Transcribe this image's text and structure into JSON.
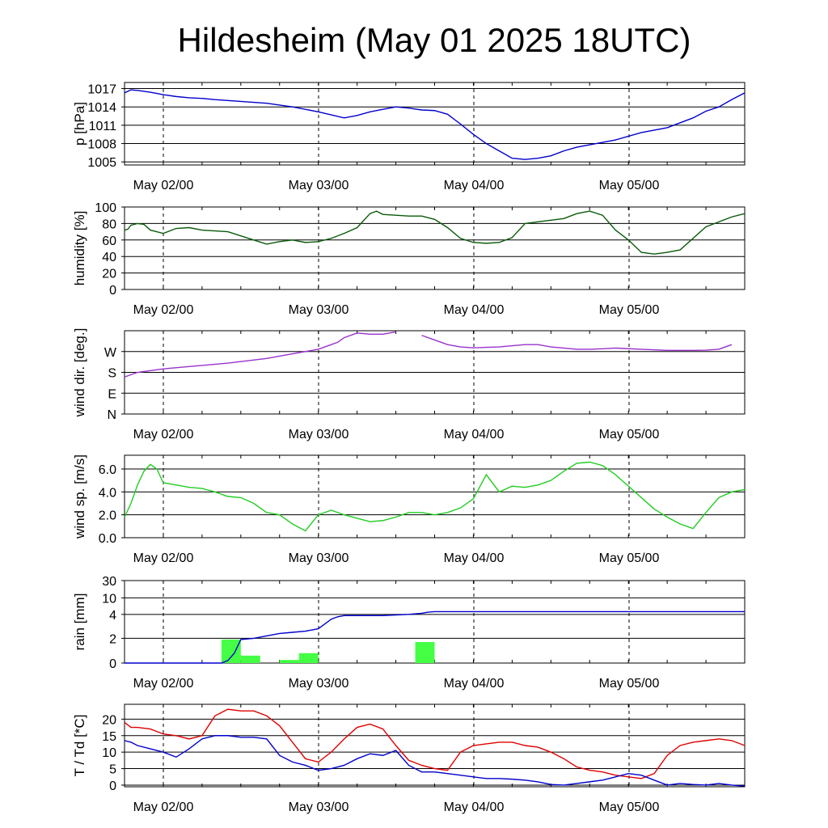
{
  "title": "Hildesheim (May 01 2025 18UTC)",
  "date_labels": [
    "May 02/00",
    "May 03/00",
    "May 04/00",
    "May 05/00"
  ],
  "colors": {
    "pressure": "#0000cc",
    "humidity": "#0a5a0a",
    "wind_dir": "#9932cc",
    "wind_speed": "#22cc22",
    "rain_bar": "#44ff44",
    "rain_line": "#0000cc",
    "temperature": "#e00000",
    "dewpoint": "#0000cc"
  },
  "chart_data": [
    {
      "type": "line",
      "ylabel": "p [hPa]",
      "xlim": [
        0,
        96
      ],
      "ylim": [
        1004.5,
        1018.0
      ],
      "yticks": [
        1005,
        1008,
        1011,
        1014,
        1017
      ],
      "yticklabels": [
        "1005",
        "1008",
        "1011",
        "1014",
        "1017"
      ],
      "series": [
        {
          "color_key": "pressure",
          "x": [
            0,
            1,
            2,
            4,
            6,
            8,
            10,
            12,
            14,
            18,
            22,
            26,
            30,
            34,
            36,
            38,
            40,
            42,
            44,
            46,
            48,
            50,
            52,
            54,
            56,
            58,
            60,
            62,
            64,
            66,
            68,
            70,
            72,
            76,
            80,
            84,
            88,
            90,
            92,
            94,
            96
          ],
          "y": [
            1016.3,
            1016.8,
            1016.7,
            1016.4,
            1016.0,
            1015.7,
            1015.5,
            1015.4,
            1015.2,
            1014.9,
            1014.6,
            1014.0,
            1013.2,
            1012.2,
            1012.6,
            1013.2,
            1013.6,
            1014.0,
            1013.8,
            1013.5,
            1013.4,
            1012.8,
            1011.2,
            1009.5,
            1008.0,
            1006.8,
            1005.6,
            1005.4,
            1005.6,
            1006.0,
            1006.8,
            1007.4,
            1007.8,
            1008.6,
            1009.8,
            1010.6,
            1012.2,
            1013.3,
            1014.0,
            1015.2,
            1016.3
          ]
        }
      ]
    },
    {
      "type": "line",
      "ylabel": "humidity [%]",
      "xlim": [
        0,
        96
      ],
      "ylim": [
        0,
        100
      ],
      "yticks": [
        0,
        20,
        40,
        60,
        80,
        100
      ],
      "yticklabels": [
        "0",
        "20",
        "40",
        "60",
        "80",
        "100"
      ],
      "series": [
        {
          "color_key": "humidity",
          "x": [
            0,
            0.5,
            1,
            2,
            3,
            4,
            6,
            8,
            10,
            12,
            16,
            20,
            22,
            24,
            26,
            28,
            30,
            32,
            34,
            36,
            38,
            39,
            40,
            42,
            44,
            46,
            48,
            50,
            52,
            54,
            56,
            58,
            60,
            62,
            64,
            66,
            68,
            70,
            72,
            74,
            76,
            78,
            80,
            82,
            84,
            86,
            88,
            90,
            92,
            94,
            96
          ],
          "y": [
            72,
            73,
            78,
            80,
            79,
            72,
            68,
            74,
            75,
            72,
            70,
            60,
            55,
            58,
            60,
            57,
            58,
            62,
            68,
            75,
            92,
            95,
            91,
            90,
            89,
            89,
            85,
            75,
            62,
            57,
            56,
            57,
            63,
            80,
            82,
            84,
            86,
            92,
            95,
            90,
            72,
            60,
            45,
            43,
            45,
            48,
            62,
            76,
            82,
            88,
            92
          ]
        }
      ]
    },
    {
      "type": "line",
      "ylabel": "wind dir. [deg.]",
      "xlim": [
        0,
        96
      ],
      "ylim": [
        0,
        360
      ],
      "yticks": [
        0,
        90,
        180,
        270
      ],
      "yticklabels": [
        "N",
        "E",
        "S",
        "W"
      ],
      "series": [
        {
          "color_key": "wind_dir",
          "x": [
            0,
            2,
            6,
            10,
            16,
            22,
            26,
            28,
            30,
            32,
            33,
            34,
            36,
            38,
            40,
            42,
            44,
            46,
            48,
            50,
            52,
            54,
            56,
            58,
            60,
            62,
            64,
            66,
            68,
            70,
            72,
            74,
            76,
            80,
            84,
            88,
            90,
            92,
            94,
            96
          ],
          "y": [
            160,
            180,
            195,
            205,
            220,
            240,
            260,
            270,
            280,
            300,
            310,
            330,
            350,
            345,
            345,
            355,
            360,
            340,
            320,
            300,
            290,
            286,
            288,
            290,
            295,
            300,
            300,
            290,
            285,
            280,
            280,
            282,
            285,
            280,
            275,
            275,
            276,
            280,
            300,
            360
          ]
        }
      ]
    },
    {
      "type": "line",
      "ylabel": "wind sp. [m/s]",
      "xlim": [
        0,
        96
      ],
      "ylim": [
        0.0,
        7.2
      ],
      "yticks": [
        0.0,
        2.0,
        4.0,
        6.0
      ],
      "yticklabels": [
        "0.0",
        "2.0",
        "4.0",
        "6.0"
      ],
      "series": [
        {
          "color_key": "wind_speed",
          "x": [
            0,
            1,
            2,
            3,
            4,
            5,
            6,
            8,
            10,
            12,
            14,
            16,
            18,
            20,
            22,
            24,
            26,
            28,
            30,
            32,
            34,
            36,
            38,
            40,
            42,
            44,
            46,
            48,
            50,
            52,
            54,
            56,
            58,
            60,
            62,
            64,
            66,
            68,
            70,
            72,
            74,
            76,
            78,
            80,
            82,
            84,
            86,
            88,
            90,
            92,
            94,
            96
          ],
          "y": [
            1.8,
            3.0,
            4.6,
            5.8,
            6.4,
            6.0,
            4.8,
            4.6,
            4.4,
            4.3,
            4.0,
            3.6,
            3.5,
            3.0,
            2.2,
            2.0,
            1.2,
            0.6,
            2.0,
            2.4,
            2.0,
            1.7,
            1.4,
            1.5,
            1.8,
            2.2,
            2.2,
            2.0,
            2.2,
            2.6,
            3.4,
            5.5,
            4.0,
            4.5,
            4.4,
            4.6,
            5.0,
            5.8,
            6.5,
            6.6,
            6.3,
            5.5,
            4.5,
            3.5,
            2.5,
            1.8,
            1.2,
            0.8,
            2.2,
            3.5,
            4.0,
            4.2
          ]
        }
      ]
    },
    {
      "type": "bar",
      "ylabel": "rain [mm]",
      "xlim": [
        0,
        96
      ],
      "ylim": [
        0,
        30
      ],
      "yscale": "quasi-log",
      "yticks": [
        0,
        2,
        4,
        10,
        30
      ],
      "yticklabels": [
        "0",
        "2",
        "4",
        "10",
        "30"
      ],
      "bars": {
        "color_key": "rain_bar",
        "x": [
          16.5,
          19.5,
          25.5,
          28.5,
          46.5
        ],
        "values": [
          1.9,
          0.6,
          0.25,
          0.8,
          1.7
        ],
        "width": 3
      },
      "series": [
        {
          "color_key": "rain_line",
          "x": [
            0,
            15,
            16,
            17,
            18,
            20,
            22,
            24,
            26,
            28,
            30,
            31,
            32,
            33,
            34,
            36,
            40,
            44,
            46,
            47,
            48,
            50,
            52,
            56,
            60,
            64,
            68,
            72,
            76,
            80,
            84,
            88,
            92,
            96
          ],
          "y": [
            0,
            0,
            0.2,
            0.8,
            1.9,
            2.0,
            2.2,
            2.4,
            2.5,
            2.6,
            2.8,
            3.2,
            3.6,
            3.8,
            3.9,
            3.9,
            3.9,
            4.0,
            4.4,
            4.8,
            5.0,
            5.0,
            5.0,
            5.0,
            5.0,
            5.0,
            5.0,
            5.0,
            5.0,
            5.0,
            5.0,
            5.0,
            5.0,
            5.0
          ]
        }
      ]
    },
    {
      "type": "line",
      "ylabel": "T / Td [*C]",
      "xlim": [
        0,
        96
      ],
      "ylim": [
        -0.5,
        24.5
      ],
      "yticks": [
        0,
        5,
        10,
        15,
        20
      ],
      "yticklabels": [
        "0",
        "5",
        "10",
        "15",
        "20"
      ],
      "series": [
        {
          "color_key": "temperature",
          "x": [
            0,
            1,
            2,
            4,
            6,
            8,
            10,
            12,
            14,
            16,
            18,
            20,
            22,
            24,
            26,
            28,
            30,
            32,
            34,
            36,
            38,
            40,
            42,
            44,
            46,
            48,
            50,
            52,
            54,
            56,
            58,
            60,
            62,
            64,
            66,
            68,
            70,
            72,
            74,
            76,
            78,
            80,
            82,
            84,
            86,
            88,
            90,
            92,
            94,
            96
          ],
          "y": [
            19,
            17.5,
            17.5,
            17,
            15.5,
            15,
            14,
            15,
            21,
            23,
            22.5,
            22.5,
            21,
            18,
            13,
            8,
            7,
            10,
            14,
            17.5,
            18.5,
            17,
            12,
            7.5,
            6,
            5,
            4.5,
            10,
            12,
            12.5,
            13,
            13,
            12,
            11.5,
            10,
            8,
            5.5,
            4.5,
            4,
            3,
            2.5,
            2,
            3.5,
            9,
            12,
            13,
            13.5,
            14,
            13.5,
            12
          ]
        },
        {
          "color_key": "dewpoint",
          "x": [
            0,
            1,
            2,
            4,
            6,
            8,
            10,
            12,
            14,
            16,
            18,
            20,
            22,
            24,
            26,
            28,
            30,
            32,
            34,
            36,
            38,
            40,
            42,
            44,
            46,
            48,
            50,
            52,
            54,
            56,
            58,
            60,
            62,
            64,
            66,
            68,
            70,
            72,
            74,
            76,
            78,
            80,
            82,
            84,
            86,
            88,
            90,
            92,
            94,
            96
          ],
          "y": [
            13.5,
            13,
            12,
            11,
            10,
            8.5,
            11,
            14,
            15,
            15,
            14.5,
            14.5,
            14,
            9,
            7,
            6,
            4.5,
            5,
            6,
            8,
            9.5,
            9,
            10.5,
            6,
            4,
            4,
            3.5,
            3,
            2.5,
            2,
            2,
            1.8,
            1.5,
            1,
            0.2,
            0,
            0.5,
            1,
            1.5,
            2.5,
            3.5,
            3,
            1.5,
            0,
            0.5,
            0.2,
            0,
            0.5,
            0,
            -0.3
          ]
        }
      ]
    }
  ]
}
